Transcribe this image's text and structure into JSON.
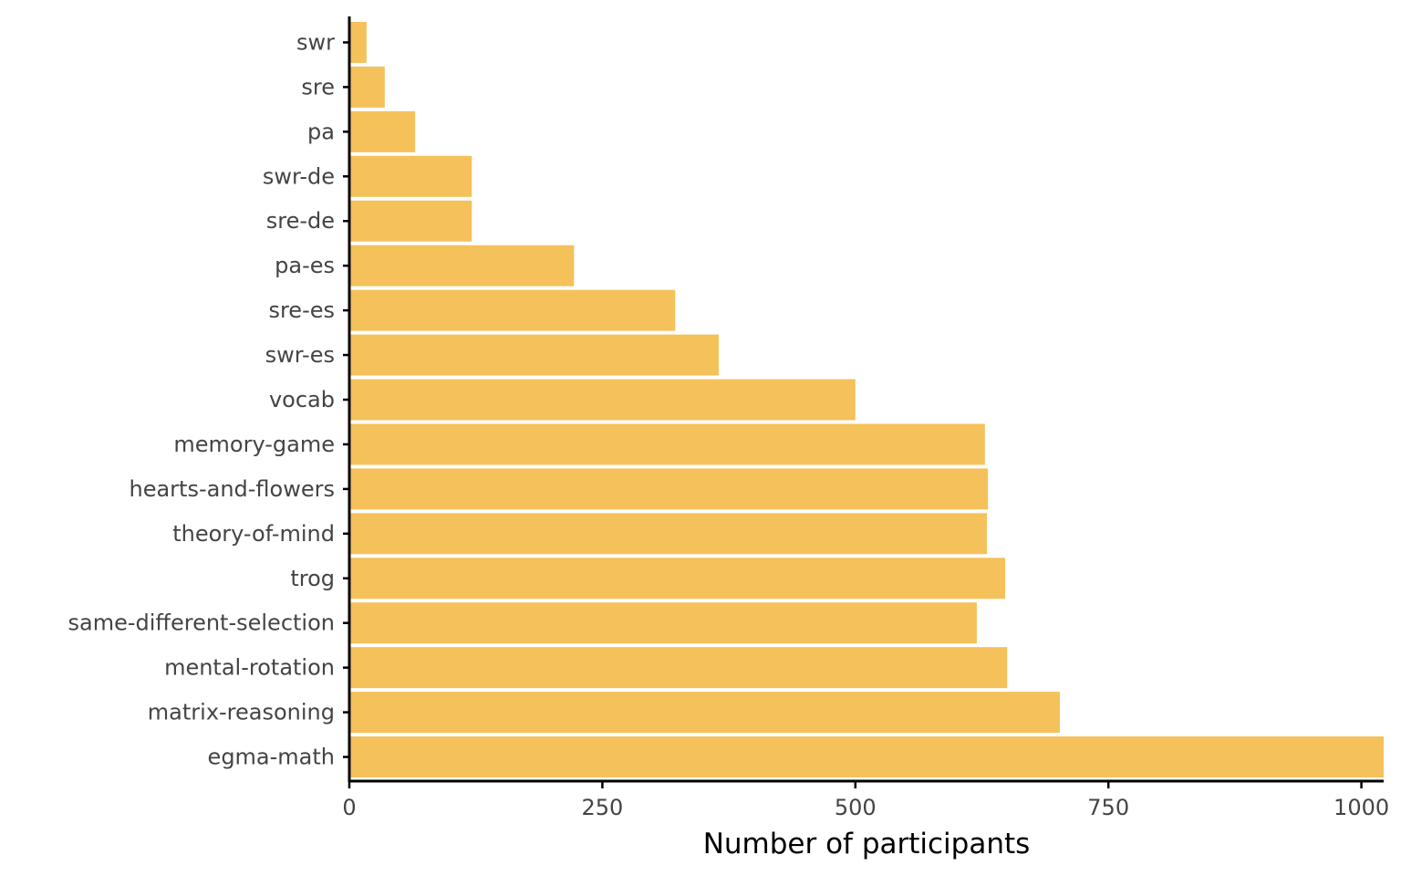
{
  "chart_data": {
    "type": "bar",
    "orientation": "horizontal",
    "categories": [
      "swr",
      "sre",
      "pa",
      "swr-de",
      "sre-de",
      "pa-es",
      "sre-es",
      "swr-es",
      "vocab",
      "memory-game",
      "hearts-and-flowers",
      "theory-of-mind",
      "trog",
      "same-different-selection",
      "mental-rotation",
      "matrix-reasoning",
      "egma-math"
    ],
    "values": [
      17,
      35,
      65,
      121,
      121,
      222,
      322,
      365,
      500,
      628,
      631,
      630,
      648,
      620,
      650,
      702,
      1022
    ],
    "xlabel": "Number of participants",
    "ylabel": "",
    "xlim": [
      0,
      1022
    ],
    "xticks": [
      0,
      250,
      500,
      750,
      1000
    ],
    "xtick_labels": [
      "0",
      "250",
      "500",
      "750",
      "1000"
    ],
    "grid": false,
    "legend": "none",
    "bar_color": "#F4C15B",
    "axis_color": "#000000",
    "tick_label_color": "#444444"
  }
}
